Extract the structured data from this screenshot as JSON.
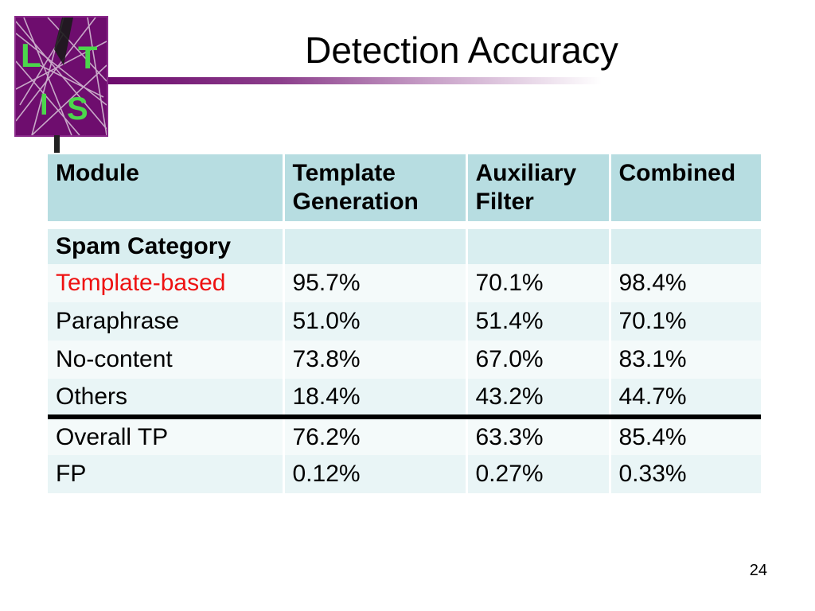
{
  "slide": {
    "title": "Detection Accuracy",
    "page_number": "24"
  },
  "logo": {
    "letters": [
      "L",
      "T",
      "I",
      "S"
    ]
  },
  "table": {
    "headers": [
      "Module",
      "Template Generation",
      "Auxiliary Filter",
      "Combined"
    ],
    "section_label": "Spam Category",
    "rows": [
      {
        "label": "Template-based",
        "template_generation": "95.7%",
        "auxiliary_filter": "70.1%",
        "combined": "98.4%"
      },
      {
        "label": "Paraphrase",
        "template_generation": "51.0%",
        "auxiliary_filter": "51.4%",
        "combined": "70.1%"
      },
      {
        "label": "No-content",
        "template_generation": "73.8%",
        "auxiliary_filter": "67.0%",
        "combined": "83.1%"
      },
      {
        "label": "Others",
        "template_generation": "18.4%",
        "auxiliary_filter": "43.2%",
        "combined": "44.7%"
      },
      {
        "label": "Overall TP",
        "template_generation": "76.2%",
        "auxiliary_filter": "63.3%",
        "combined": "85.4%"
      },
      {
        "label": "FP",
        "template_generation": "0.12%",
        "auxiliary_filter": "0.27%",
        "combined": "0.33%"
      }
    ]
  },
  "colors": {
    "header_bg": "#b7dde1",
    "row_bg_a": "#e9f5f6",
    "row_bg_b": "#f4fafa",
    "highlight_text": "#ee1111",
    "logo_bg": "#6e0d6e",
    "logo_letters": "#4cd64c"
  }
}
